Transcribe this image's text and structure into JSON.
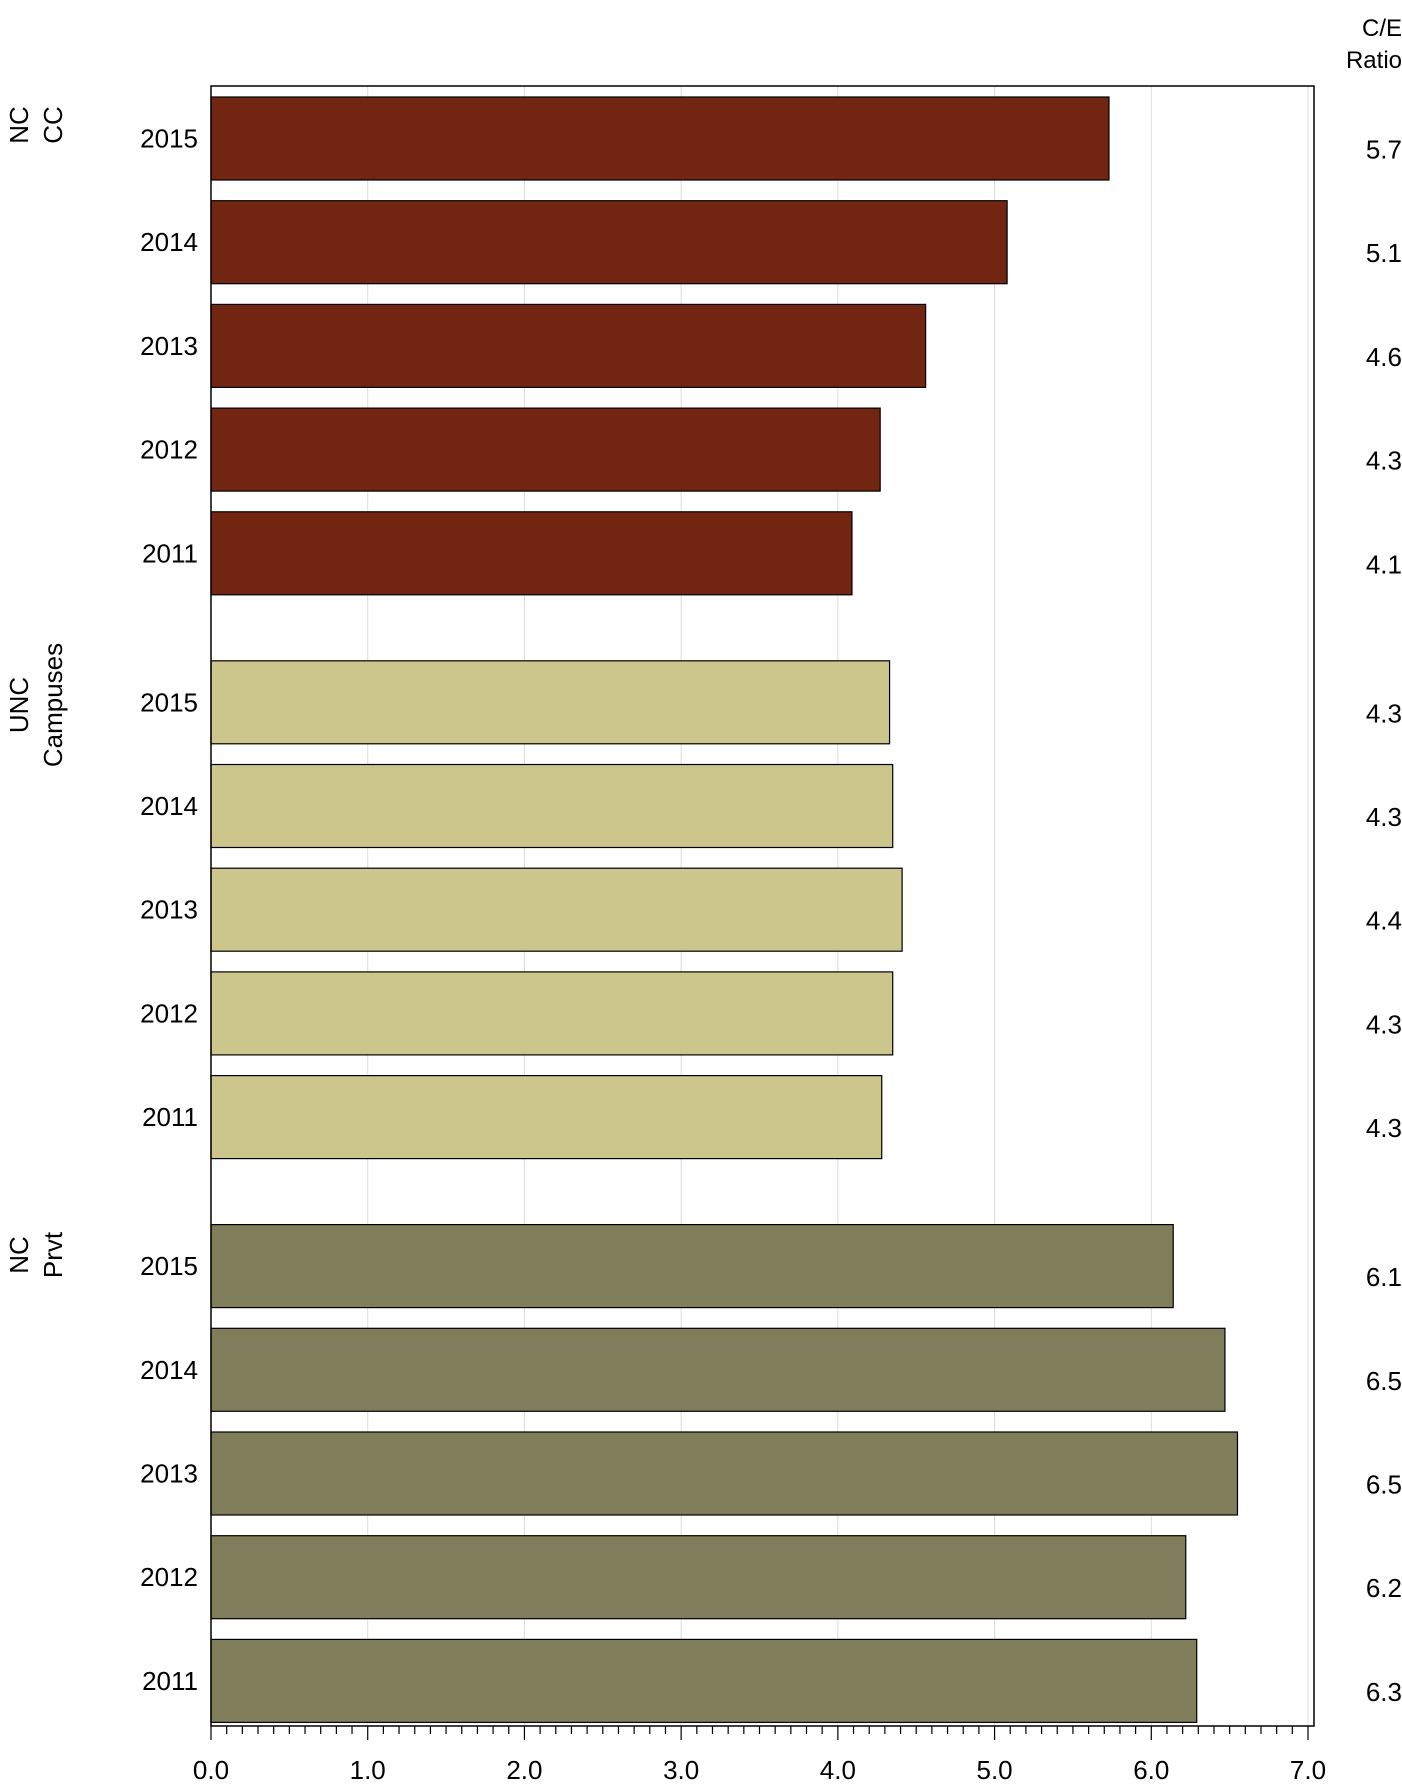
{
  "chart_data": {
    "type": "bar",
    "orientation": "horizontal",
    "ratio_header": [
      "C/E",
      "Ratio"
    ],
    "xlim": [
      0,
      7
    ],
    "xticks": [
      "0.0",
      "1.0",
      "2.0",
      "3.0",
      "4.0",
      "5.0",
      "6.0",
      "7.0"
    ],
    "grid": true,
    "groups": [
      {
        "label_lines": [
          "NC",
          "CC"
        ],
        "color": "#722611",
        "bars": [
          {
            "year": "2015",
            "value": 5.73,
            "ratio": "5.7"
          },
          {
            "year": "2014",
            "value": 5.08,
            "ratio": "5.1"
          },
          {
            "year": "2013",
            "value": 4.56,
            "ratio": "4.6"
          },
          {
            "year": "2012",
            "value": 4.27,
            "ratio": "4.3"
          },
          {
            "year": "2011",
            "value": 4.09,
            "ratio": "4.1"
          }
        ]
      },
      {
        "label_lines": [
          "UNC",
          "Campuses"
        ],
        "color": "#CCC68D",
        "bars": [
          {
            "year": "2015",
            "value": 4.33,
            "ratio": "4.3"
          },
          {
            "year": "2014",
            "value": 4.35,
            "ratio": "4.3"
          },
          {
            "year": "2013",
            "value": 4.41,
            "ratio": "4.4"
          },
          {
            "year": "2012",
            "value": 4.35,
            "ratio": "4.3"
          },
          {
            "year": "2011",
            "value": 4.28,
            "ratio": "4.3"
          }
        ]
      },
      {
        "label_lines": [
          "NC",
          "Prvt"
        ],
        "color": "#7F7D5A",
        "bars": [
          {
            "year": "2015",
            "value": 6.14,
            "ratio": "6.1"
          },
          {
            "year": "2014",
            "value": 6.47,
            "ratio": "6.5"
          },
          {
            "year": "2013",
            "value": 6.55,
            "ratio": "6.5"
          },
          {
            "year": "2012",
            "value": 6.22,
            "ratio": "6.2"
          },
          {
            "year": "2011",
            "value": 6.29,
            "ratio": "6.3"
          }
        ]
      }
    ]
  }
}
